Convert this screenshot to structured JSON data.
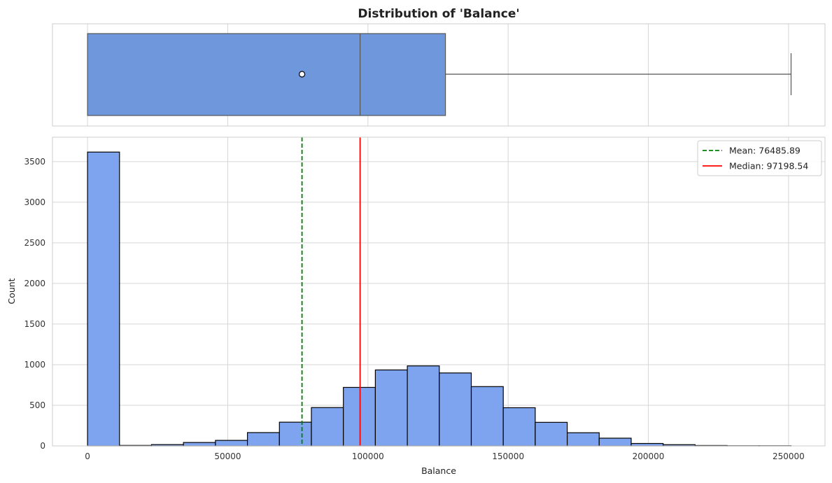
{
  "chart_data": [
    {
      "type": "box",
      "title": "Distribution of 'Balance'",
      "xlim": [
        -12500,
        263000
      ],
      "box": {
        "min": 0,
        "q1": 0,
        "median": 97198.54,
        "q3": 127644,
        "max": 250898,
        "mean": 76485.89
      },
      "color": "#6f98dc",
      "grid": true
    },
    {
      "type": "bar",
      "xlabel": "Balance",
      "ylabel": "Count",
      "xlim": [
        -12500,
        263000
      ],
      "ylim": [
        0,
        3800
      ],
      "bin_edges": [
        0,
        11404.5,
        22809,
        34213.5,
        45618,
        57022.5,
        68427,
        79831.5,
        91236,
        102640.5,
        114045,
        125449.5,
        136854,
        148258.5,
        159663,
        171067.5,
        182472,
        193876.5,
        205281,
        216685.5,
        228090,
        239494.5,
        250899
      ],
      "values": [
        3617,
        6,
        16,
        42,
        68,
        164,
        292,
        472,
        720,
        935,
        985,
        898,
        730,
        470,
        290,
        162,
        95,
        30,
        15,
        5,
        2,
        2
      ],
      "bar_color": "#7ea4ef",
      "x_ticks": [
        0,
        50000,
        100000,
        150000,
        200000,
        250000
      ],
      "x_tick_labels": [
        "0",
        "50000",
        "100000",
        "150000",
        "200000",
        "250000"
      ],
      "y_ticks": [
        0,
        500,
        1000,
        1500,
        2000,
        2500,
        3000,
        3500
      ],
      "y_tick_labels": [
        "0",
        "500",
        "1000",
        "1500",
        "2000",
        "2500",
        "3000",
        "3500"
      ],
      "lines": [
        {
          "label": "Mean: 76485.89",
          "value": 76485.89,
          "color": "#008000",
          "style": "dashed"
        },
        {
          "label": "Median: 97198.54",
          "value": 97198.54,
          "color": "#ff0000",
          "style": "solid"
        }
      ],
      "legend": "top-right",
      "grid": true
    }
  ]
}
